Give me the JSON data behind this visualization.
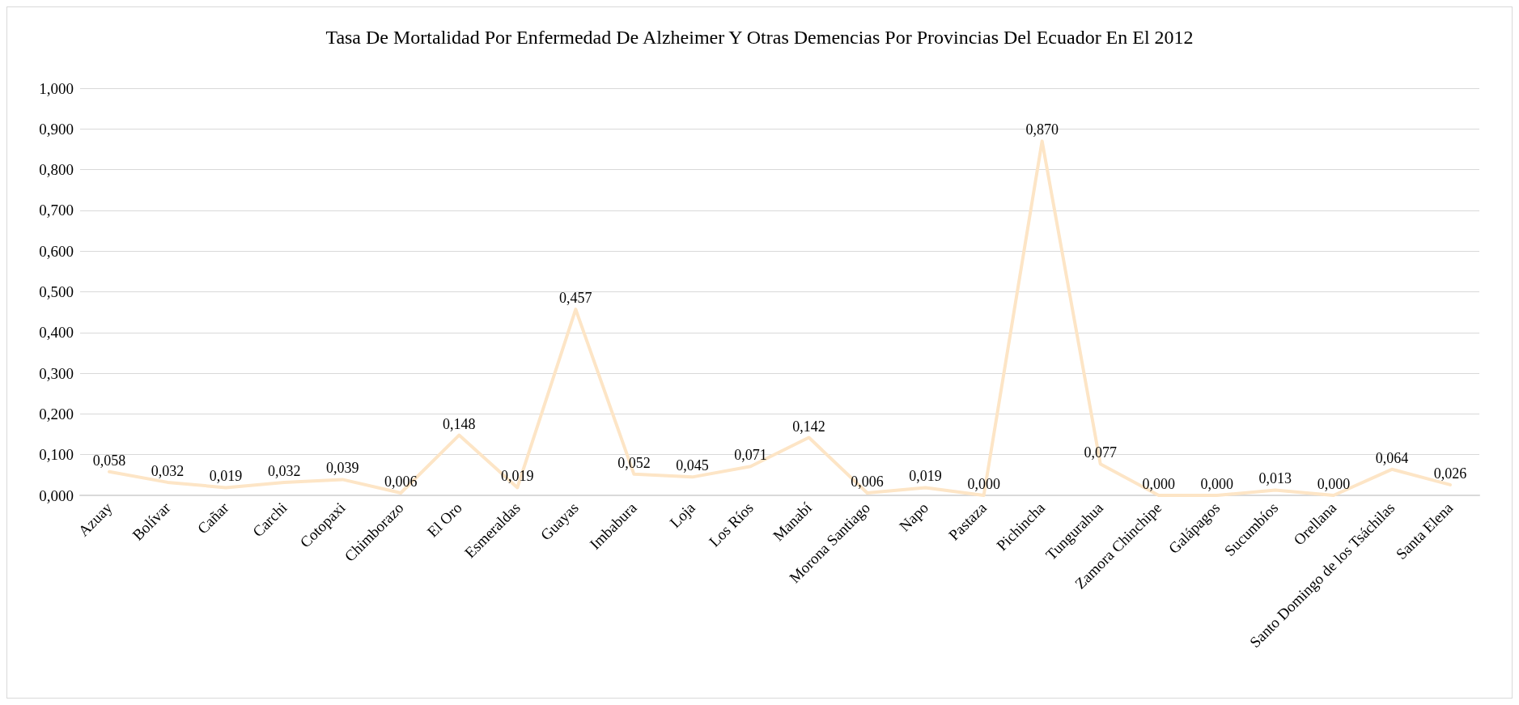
{
  "chart_data": {
    "type": "line",
    "title": "Tasa De Mortalidad Por Enfermedad De Alzheimer Y Otras Demencias Por Provincias Del Ecuador En El 2012",
    "categories": [
      "Azuay",
      "Bolívar",
      "Cañar",
      "Carchi",
      "Cotopaxi",
      "Chimborazo",
      "El Oro",
      "Esmeraldas",
      "Guayas",
      "Imbabura",
      "Loja",
      "Los Ríos",
      "Manabí",
      "Morona Santiago",
      "Napo",
      "Pastaza",
      "Pichincha",
      "Tungurahua",
      "Zamora Chinchipe",
      "Galápagos",
      "Sucumbíos",
      "Orellana",
      "Santo Domingo de los Tsáchilas",
      "Santa Elena"
    ],
    "series": [
      {
        "color": "#fde5c6",
        "values": [
          0.058,
          0.032,
          0.019,
          0.032,
          0.039,
          0.006,
          0.148,
          0.019,
          0.457,
          0.052,
          0.045,
          0.071,
          0.142,
          0.006,
          0.019,
          0.0,
          0.87,
          0.077,
          0.0,
          0.0,
          0.013,
          0.0,
          0.064,
          0.026
        ],
        "value_labels": [
          "0,058",
          "0,032",
          "0,019",
          "0,032",
          "0,039",
          "0,006",
          "0,148",
          "0,019",
          "0,457",
          "0,052",
          "0,045",
          "0,071",
          "0,142",
          "0,006",
          "0,019",
          "0,000",
          "0,870",
          "0,077",
          "0,000",
          "0,000",
          "0,013",
          "0,000",
          "0,064",
          "0,026"
        ]
      }
    ],
    "ylim": [
      0,
      1
    ],
    "yticks": [
      {
        "value": 0,
        "label": "0,000"
      },
      {
        "value": 0.1,
        "label": "0,100"
      },
      {
        "value": 0.2,
        "label": "0,200"
      },
      {
        "value": 0.3,
        "label": "0,300"
      },
      {
        "value": 0.4,
        "label": "0,400"
      },
      {
        "value": 0.5,
        "label": "0,500"
      },
      {
        "value": 0.6,
        "label": "0,600"
      },
      {
        "value": 0.7,
        "label": "0,700"
      },
      {
        "value": 0.8,
        "label": "0,800"
      },
      {
        "value": 0.9,
        "label": "0,900"
      },
      {
        "value": 1,
        "label": "1,000"
      }
    ],
    "grid": "y",
    "marker": "none",
    "line_style": "solid"
  }
}
